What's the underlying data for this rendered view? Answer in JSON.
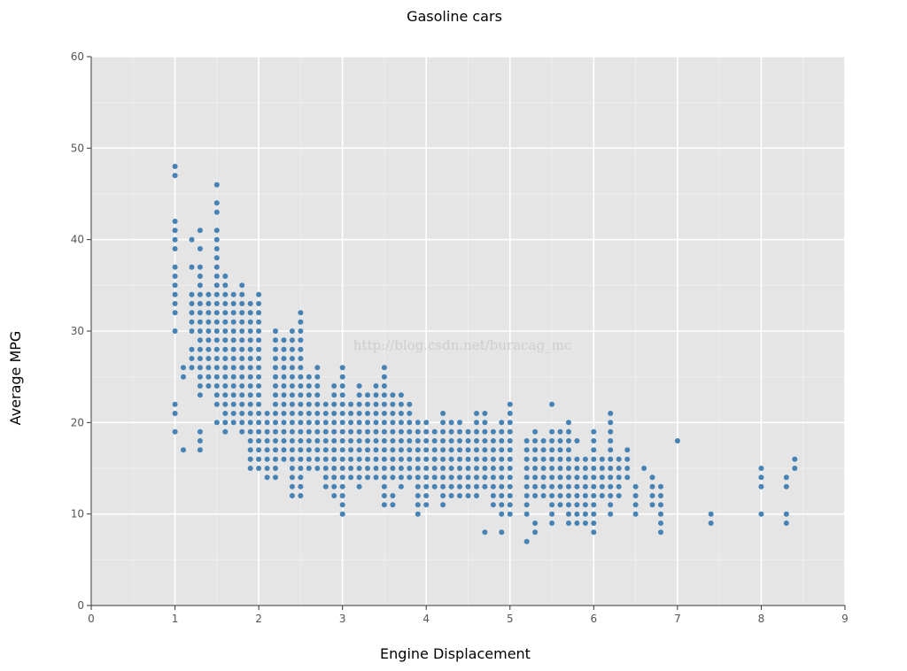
{
  "chart_data": {
    "type": "scatter",
    "title": "Gasoline cars",
    "xlabel": "Engine Displacement",
    "ylabel": "Average MPG",
    "xlim": [
      0,
      9
    ],
    "ylim": [
      0,
      60
    ],
    "x_ticks": [
      "0",
      "1",
      "2",
      "3",
      "4",
      "5",
      "6",
      "7",
      "8",
      "9"
    ],
    "y_ticks": [
      "0",
      "10",
      "20",
      "30",
      "40",
      "50",
      "60"
    ],
    "grid": true,
    "watermark": "http://blog.csdn.net/buracag_mc",
    "colors": {
      "panel": "#e5e5e5",
      "grid": "#ffffff",
      "point": "#4682b4"
    },
    "columns": [
      {
        "x": 1.0,
        "y": [
          19,
          21,
          22,
          30,
          32,
          33,
          34,
          35,
          36,
          37,
          39,
          40,
          41,
          42,
          47,
          48
        ]
      },
      {
        "x": 1.1,
        "y": [
          17,
          25,
          26
        ]
      },
      {
        "x": 1.2,
        "y": [
          26,
          27,
          28,
          30,
          31,
          32,
          33,
          34,
          37,
          40
        ]
      },
      {
        "x": 1.3,
        "y": [
          17,
          18,
          19,
          23,
          24,
          25,
          26,
          27,
          28,
          29,
          30,
          31,
          32,
          33,
          34,
          35,
          36,
          37,
          39,
          41
        ]
      },
      {
        "x": 1.4,
        "y": [
          24,
          25,
          26,
          27,
          28,
          29,
          30,
          31,
          32,
          33,
          34
        ]
      },
      {
        "x": 1.5,
        "y": [
          20,
          22,
          23,
          24,
          25,
          26,
          27,
          28,
          29,
          30,
          31,
          32,
          33,
          34,
          35,
          36,
          37,
          38,
          39,
          40,
          41,
          43,
          44,
          46
        ]
      },
      {
        "x": 1.6,
        "y": [
          19,
          20,
          21,
          22,
          23,
          24,
          25,
          26,
          27,
          28,
          29,
          30,
          31,
          32,
          33,
          34,
          35,
          36
        ]
      },
      {
        "x": 1.7,
        "y": [
          20,
          21,
          22,
          23,
          24,
          25,
          26,
          27,
          28,
          29,
          30,
          31,
          32,
          33,
          34
        ]
      },
      {
        "x": 1.8,
        "y": [
          19,
          20,
          21,
          22,
          23,
          24,
          25,
          26,
          27,
          28,
          29,
          30,
          31,
          32,
          33,
          34,
          35
        ]
      },
      {
        "x": 1.9,
        "y": [
          15,
          16,
          17,
          18,
          19,
          20,
          21,
          22,
          23,
          24,
          25,
          26,
          27,
          28,
          29,
          30,
          31,
          32,
          33
        ]
      },
      {
        "x": 2.0,
        "y": [
          15,
          16,
          17,
          18,
          19,
          20,
          21,
          22,
          23,
          24,
          25,
          26,
          27,
          28,
          29,
          30,
          31,
          32,
          33,
          34
        ]
      },
      {
        "x": 2.1,
        "y": [
          14,
          15,
          16,
          17,
          18,
          19,
          20,
          21
        ]
      },
      {
        "x": 2.2,
        "y": [
          14,
          15,
          16,
          17,
          18,
          19,
          20,
          21,
          22,
          23,
          24,
          25,
          26,
          27,
          28,
          29,
          30
        ]
      },
      {
        "x": 2.3,
        "y": [
          16,
          17,
          18,
          19,
          20,
          21,
          22,
          23,
          24,
          25,
          26,
          27,
          28,
          29
        ]
      },
      {
        "x": 2.4,
        "y": [
          12,
          13,
          14,
          15,
          16,
          17,
          18,
          19,
          20,
          21,
          22,
          23,
          24,
          25,
          26,
          27,
          28,
          29,
          30
        ]
      },
      {
        "x": 2.5,
        "y": [
          12,
          13,
          14,
          15,
          16,
          17,
          18,
          19,
          20,
          21,
          22,
          23,
          24,
          25,
          26,
          27,
          28,
          29,
          30,
          31,
          32
        ]
      },
      {
        "x": 2.6,
        "y": [
          15,
          16,
          17,
          18,
          19,
          20,
          21,
          22,
          23,
          24,
          25
        ]
      },
      {
        "x": 2.7,
        "y": [
          15,
          16,
          17,
          18,
          19,
          20,
          21,
          22,
          23,
          24,
          25,
          26
        ]
      },
      {
        "x": 2.8,
        "y": [
          13,
          14,
          15,
          16,
          17,
          18,
          19,
          20,
          21,
          22
        ]
      },
      {
        "x": 2.9,
        "y": [
          12,
          13,
          14,
          15,
          16,
          17,
          18,
          19,
          20,
          21,
          22,
          23,
          24
        ]
      },
      {
        "x": 3.0,
        "y": [
          10,
          11,
          12,
          13,
          14,
          15,
          16,
          17,
          18,
          19,
          20,
          21,
          22,
          23,
          24,
          25,
          26
        ]
      },
      {
        "x": 3.1,
        "y": [
          14,
          15,
          16,
          17,
          18,
          19,
          20,
          21,
          22
        ]
      },
      {
        "x": 3.2,
        "y": [
          13,
          14,
          15,
          16,
          17,
          18,
          19,
          20,
          21,
          22,
          23,
          24
        ]
      },
      {
        "x": 3.3,
        "y": [
          14,
          15,
          16,
          17,
          18,
          19,
          20,
          21,
          22,
          23
        ]
      },
      {
        "x": 3.4,
        "y": [
          14,
          15,
          16,
          17,
          18,
          19,
          20,
          21,
          22,
          23,
          24
        ]
      },
      {
        "x": 3.5,
        "y": [
          11,
          12,
          13,
          14,
          15,
          16,
          17,
          18,
          19,
          20,
          21,
          22,
          23,
          24,
          25,
          26
        ]
      },
      {
        "x": 3.6,
        "y": [
          11,
          12,
          14,
          15,
          16,
          17,
          18,
          19,
          20,
          21,
          22,
          23
        ]
      },
      {
        "x": 3.7,
        "y": [
          13,
          14,
          15,
          16,
          17,
          18,
          19,
          20,
          21,
          22,
          23
        ]
      },
      {
        "x": 3.8,
        "y": [
          14,
          15,
          16,
          17,
          18,
          19,
          20,
          21,
          22
        ]
      },
      {
        "x": 3.9,
        "y": [
          10,
          11,
          12,
          13,
          14,
          15,
          16,
          17,
          18,
          19,
          20
        ]
      },
      {
        "x": 4.0,
        "y": [
          11,
          12,
          13,
          14,
          15,
          16,
          17,
          18,
          19,
          20
        ]
      },
      {
        "x": 4.1,
        "y": [
          13,
          14,
          15,
          16,
          17,
          18,
          19
        ]
      },
      {
        "x": 4.2,
        "y": [
          11,
          12,
          13,
          14,
          15,
          16,
          17,
          18,
          19,
          20,
          21
        ]
      },
      {
        "x": 4.3,
        "y": [
          12,
          13,
          14,
          15,
          16,
          17,
          18,
          19,
          20
        ]
      },
      {
        "x": 4.4,
        "y": [
          12,
          13,
          14,
          15,
          16,
          17,
          18,
          19,
          20
        ]
      },
      {
        "x": 4.5,
        "y": [
          12,
          13,
          14,
          15,
          16,
          17,
          18,
          19
        ]
      },
      {
        "x": 4.6,
        "y": [
          12,
          13,
          14,
          15,
          16,
          17,
          18,
          19,
          20,
          21
        ]
      },
      {
        "x": 4.7,
        "y": [
          8,
          13,
          14,
          15,
          16,
          17,
          18,
          19,
          20,
          21
        ]
      },
      {
        "x": 4.8,
        "y": [
          11,
          12,
          13,
          14,
          15,
          16,
          17,
          18,
          19
        ]
      },
      {
        "x": 4.9,
        "y": [
          8,
          10,
          11,
          12,
          13,
          14,
          15,
          16,
          17,
          18,
          19,
          20
        ]
      },
      {
        "x": 5.0,
        "y": [
          10,
          11,
          12,
          13,
          14,
          15,
          16,
          17,
          18,
          19,
          20,
          21,
          22
        ]
      },
      {
        "x": 5.2,
        "y": [
          7,
          10,
          11,
          12,
          13,
          14,
          15,
          16,
          17,
          18
        ]
      },
      {
        "x": 5.3,
        "y": [
          8,
          9,
          12,
          13,
          14,
          15,
          16,
          17,
          18,
          19
        ]
      },
      {
        "x": 5.4,
        "y": [
          12,
          13,
          14,
          15,
          16,
          17,
          18
        ]
      },
      {
        "x": 5.5,
        "y": [
          9,
          10,
          11,
          12,
          13,
          14,
          15,
          16,
          17,
          18,
          19,
          22
        ]
      },
      {
        "x": 5.6,
        "y": [
          11,
          12,
          13,
          14,
          15,
          16,
          17,
          18,
          19
        ]
      },
      {
        "x": 5.7,
        "y": [
          9,
          10,
          11,
          12,
          13,
          14,
          15,
          16,
          17,
          18,
          19,
          20
        ]
      },
      {
        "x": 5.8,
        "y": [
          9,
          10,
          11,
          12,
          13,
          14,
          15,
          16,
          18
        ]
      },
      {
        "x": 5.9,
        "y": [
          9,
          10,
          11,
          12,
          13,
          14,
          15,
          16
        ]
      },
      {
        "x": 6.0,
        "y": [
          8,
          9,
          10,
          11,
          12,
          13,
          14,
          15,
          16,
          17,
          18,
          19
        ]
      },
      {
        "x": 6.1,
        "y": [
          12,
          13,
          14,
          15,
          16
        ]
      },
      {
        "x": 6.2,
        "y": [
          10,
          11,
          12,
          13,
          14,
          15,
          16,
          17,
          18,
          19,
          20,
          21
        ]
      },
      {
        "x": 6.3,
        "y": [
          12,
          13,
          14,
          15,
          16
        ]
      },
      {
        "x": 6.4,
        "y": [
          14,
          15,
          16,
          17
        ]
      },
      {
        "x": 6.5,
        "y": [
          10,
          11,
          12,
          13
        ]
      },
      {
        "x": 6.6,
        "y": [
          15
        ]
      },
      {
        "x": 6.7,
        "y": [
          11,
          12,
          13,
          14
        ]
      },
      {
        "x": 6.8,
        "y": [
          8,
          9,
          10,
          11,
          12,
          13
        ]
      },
      {
        "x": 7.0,
        "y": [
          18
        ]
      },
      {
        "x": 7.4,
        "y": [
          9,
          10
        ]
      },
      {
        "x": 8.0,
        "y": [
          10,
          13,
          14,
          15
        ]
      },
      {
        "x": 8.3,
        "y": [
          9,
          10,
          13,
          14
        ]
      },
      {
        "x": 8.4,
        "y": [
          15,
          16
        ]
      }
    ]
  }
}
